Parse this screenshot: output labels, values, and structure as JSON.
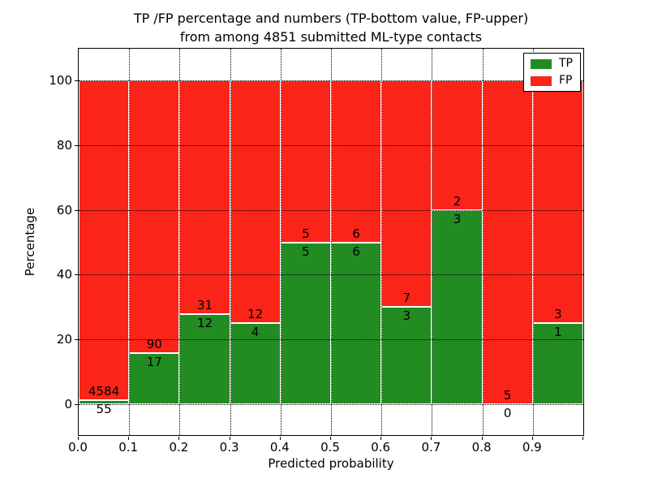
{
  "title": {
    "line1": "TP /FP percentage and numbers (TP-bottom value, FP-upper)",
    "line2": "from among 4851 submitted ML-type contacts"
  },
  "axes": {
    "xlabel": "Predicted probability",
    "ylabel": "Percentage",
    "x_tick_labels": [
      "0.0",
      "0.1",
      "0.2",
      "0.3",
      "0.4",
      "0.5",
      "0.6",
      "0.7",
      "0.8",
      "0.9"
    ],
    "y_tick_labels": [
      "0",
      "20",
      "40",
      "60",
      "80",
      "100"
    ]
  },
  "legend": {
    "position": "upper right",
    "entries": [
      {
        "label": "TP",
        "color": "#228b22"
      },
      {
        "label": "FP",
        "color": "#fa2418"
      }
    ]
  },
  "colors": {
    "tp_green": "#228b22",
    "fp_red": "#fa2418",
    "bar_edge": "#ffffff",
    "grid": "#000000"
  },
  "chart_data": {
    "type": "bar",
    "stacked": true,
    "title": "TP /FP percentage and numbers (TP-bottom value, FP-upper) from among 4851 submitted ML-type contacts",
    "xlabel": "Predicted probability",
    "ylabel": "Percentage",
    "xlim": [
      0,
      1
    ],
    "ylim": [
      -10,
      110
    ],
    "grid": "dotted black, drawn above bars",
    "legend_position": "upper right",
    "bin_width": 0.1,
    "total_contacts": 4851,
    "series": [
      {
        "name": "TP",
        "color": "#228b22",
        "counts": [
          55,
          17,
          12,
          4,
          5,
          6,
          3,
          3,
          0,
          1
        ]
      },
      {
        "name": "FP",
        "color": "#fa2418",
        "counts": [
          4584,
          90,
          31,
          12,
          5,
          6,
          7,
          2,
          5,
          3
        ]
      }
    ],
    "bins": [
      {
        "x_start": 0.0,
        "x_end": 0.1,
        "tp_count": 55,
        "fp_count": 4584,
        "tp_percent": 1.2,
        "fp_percent": 98.8
      },
      {
        "x_start": 0.1,
        "x_end": 0.2,
        "tp_count": 17,
        "fp_count": 90,
        "tp_percent": 15.9,
        "fp_percent": 84.1
      },
      {
        "x_start": 0.2,
        "x_end": 0.3,
        "tp_count": 12,
        "fp_count": 31,
        "tp_percent": 27.9,
        "fp_percent": 72.1
      },
      {
        "x_start": 0.3,
        "x_end": 0.4,
        "tp_count": 4,
        "fp_count": 12,
        "tp_percent": 25.0,
        "fp_percent": 75.0
      },
      {
        "x_start": 0.4,
        "x_end": 0.5,
        "tp_count": 5,
        "fp_count": 5,
        "tp_percent": 50.0,
        "fp_percent": 50.0
      },
      {
        "x_start": 0.5,
        "x_end": 0.6,
        "tp_count": 6,
        "fp_count": 6,
        "tp_percent": 50.0,
        "fp_percent": 50.0
      },
      {
        "x_start": 0.6,
        "x_end": 0.7,
        "tp_count": 3,
        "fp_count": 7,
        "tp_percent": 30.0,
        "fp_percent": 70.0
      },
      {
        "x_start": 0.7,
        "x_end": 0.8,
        "tp_count": 3,
        "fp_count": 2,
        "tp_percent": 60.0,
        "fp_percent": 40.0
      },
      {
        "x_start": 0.8,
        "x_end": 0.9,
        "tp_count": 0,
        "fp_count": 5,
        "tp_percent": 0.0,
        "fp_percent": 100.0
      },
      {
        "x_start": 0.9,
        "x_end": 1.0,
        "tp_count": 1,
        "fp_count": 3,
        "tp_percent": 25.0,
        "fp_percent": 75.0
      }
    ]
  }
}
